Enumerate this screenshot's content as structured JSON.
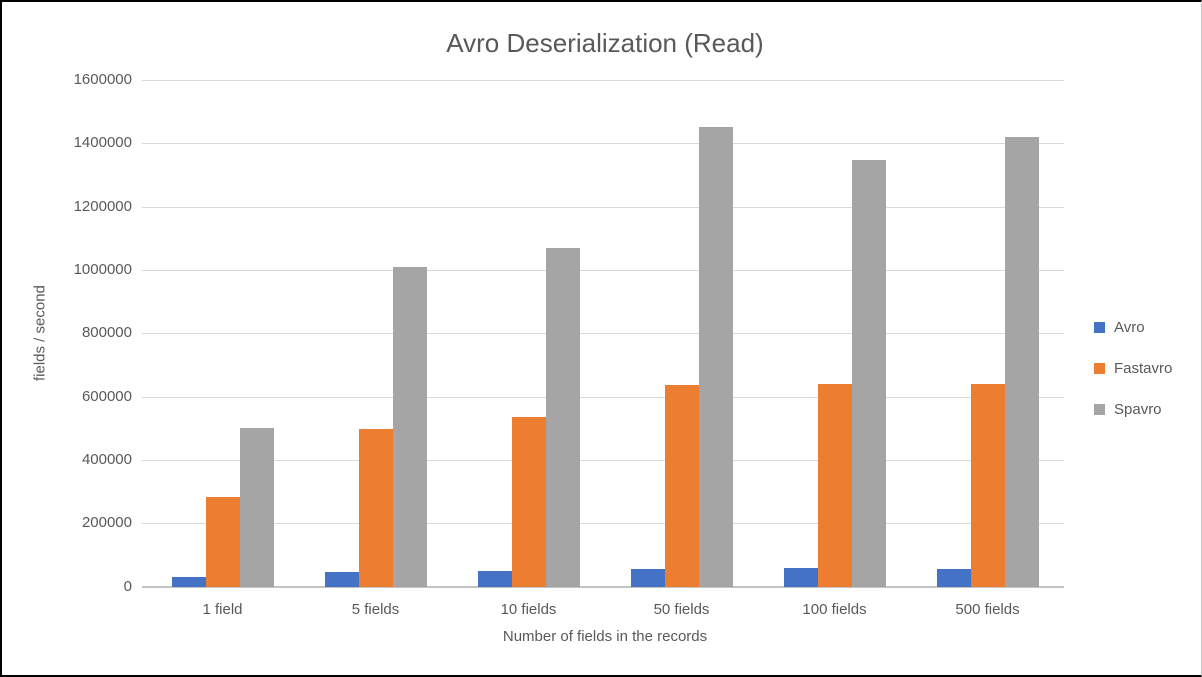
{
  "colors": {
    "background": "#FFFFFF",
    "frame_border": "#000000",
    "chart_border_right": "#C9C9C9",
    "text": "#595959",
    "gridline": "#D9D9D9",
    "axis_line": "#C3C3C3",
    "avro_blue": "#4472C4",
    "fastavro_orange": "#ED7D31",
    "spavro_gray": "#A5A5A5"
  },
  "chart_data": {
    "type": "bar",
    "title": "Avro Deserialization (Read)",
    "xlabel": "Number of fields in the records",
    "ylabel": "fields / second",
    "categories": [
      "1 field",
      "5 fields",
      "10 fields",
      "50 fields",
      "100 fields",
      "500 fields"
    ],
    "series": [
      {
        "name": "Avro",
        "color": "#4472C4",
        "values": [
          31000,
          47000,
          52000,
          57000,
          59000,
          57000
        ]
      },
      {
        "name": "Fastavro",
        "color": "#ED7D31",
        "values": [
          285000,
          498000,
          538000,
          637000,
          642000,
          641000
        ]
      },
      {
        "name": "Spavro",
        "color": "#A5A5A5",
        "values": [
          502000,
          1010000,
          1072000,
          1452000,
          1350000,
          1422000
        ]
      }
    ],
    "ylim": [
      0,
      1600000
    ],
    "ytick_step": 200000,
    "yticks": [
      "0",
      "200000",
      "400000",
      "600000",
      "800000",
      "1000000",
      "1200000",
      "1400000",
      "1600000"
    ],
    "grid": true,
    "legend_position": "right",
    "legend_entries": [
      "Avro",
      "Fastavro",
      "Spavro"
    ]
  }
}
